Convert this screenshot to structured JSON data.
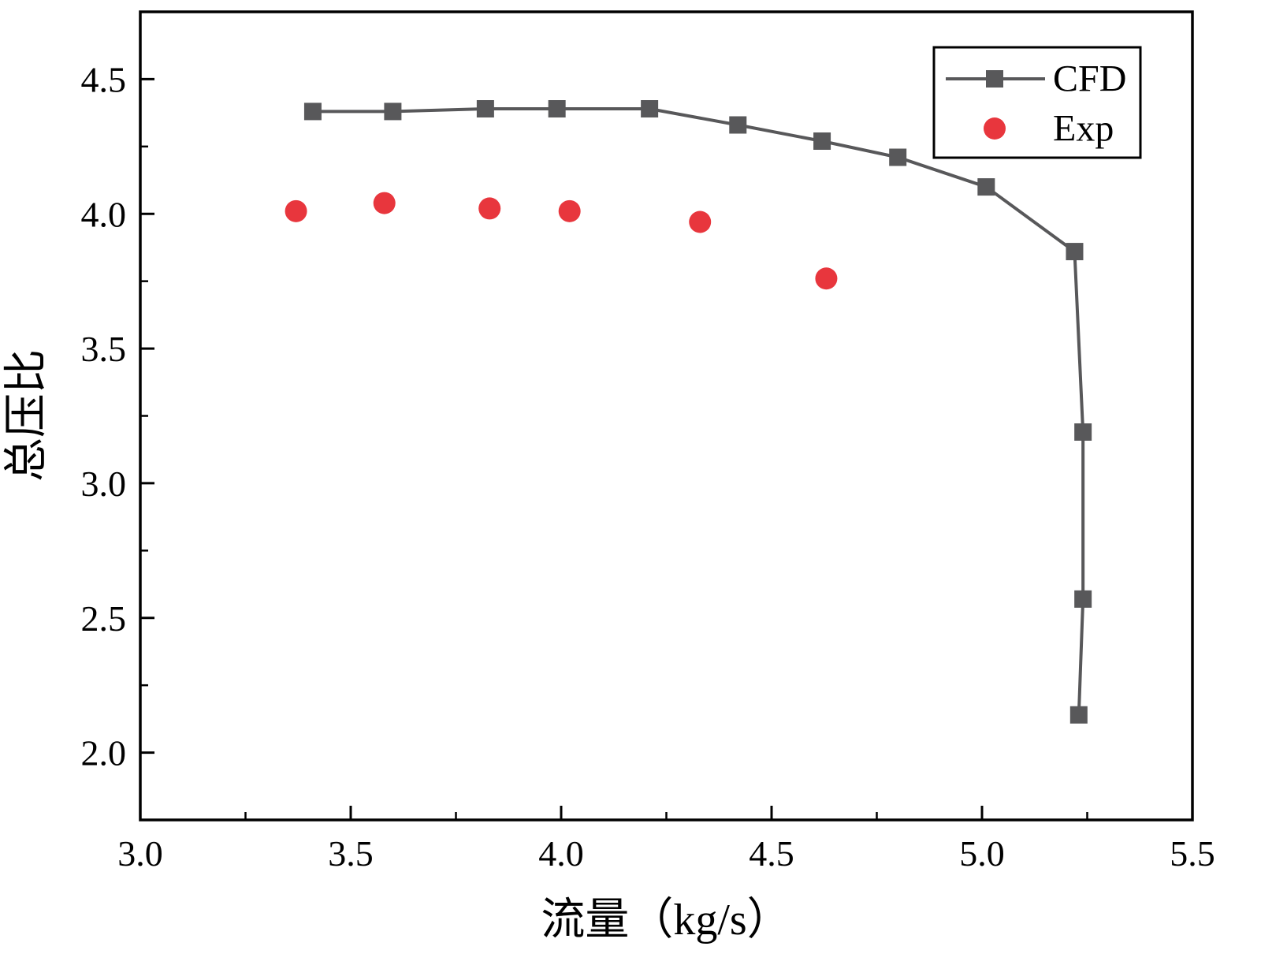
{
  "chart_data": {
    "type": "line",
    "title": "",
    "xlabel": "流量（kg/s）",
    "ylabel": "总压比",
    "xlim": [
      3.0,
      5.5
    ],
    "ylim": [
      1.75,
      4.75
    ],
    "xticks": [
      3.0,
      3.5,
      4.0,
      4.5,
      5.0,
      5.5
    ],
    "yticks": [
      2.0,
      2.5,
      3.0,
      3.5,
      4.0,
      4.5
    ],
    "grid": false,
    "legend_position": "top-right",
    "axis_color": "#000000",
    "series": [
      {
        "name": "CFD",
        "marker": "square",
        "color": "#58585a",
        "line": true,
        "points": [
          [
            3.41,
            4.38
          ],
          [
            3.6,
            4.38
          ],
          [
            3.82,
            4.39
          ],
          [
            3.99,
            4.39
          ],
          [
            4.21,
            4.39
          ],
          [
            4.42,
            4.33
          ],
          [
            4.62,
            4.27
          ],
          [
            4.8,
            4.21
          ],
          [
            5.01,
            4.1
          ],
          [
            5.22,
            3.86
          ],
          [
            5.24,
            3.19
          ],
          [
            5.24,
            2.57
          ],
          [
            5.23,
            2.14
          ]
        ]
      },
      {
        "name": "Exp",
        "marker": "circle",
        "color": "#e8363d",
        "line": false,
        "points": [
          [
            3.37,
            4.01
          ],
          [
            3.58,
            4.04
          ],
          [
            3.83,
            4.02
          ],
          [
            4.02,
            4.01
          ],
          [
            4.33,
            3.97
          ],
          [
            4.63,
            3.76
          ]
        ]
      }
    ]
  }
}
